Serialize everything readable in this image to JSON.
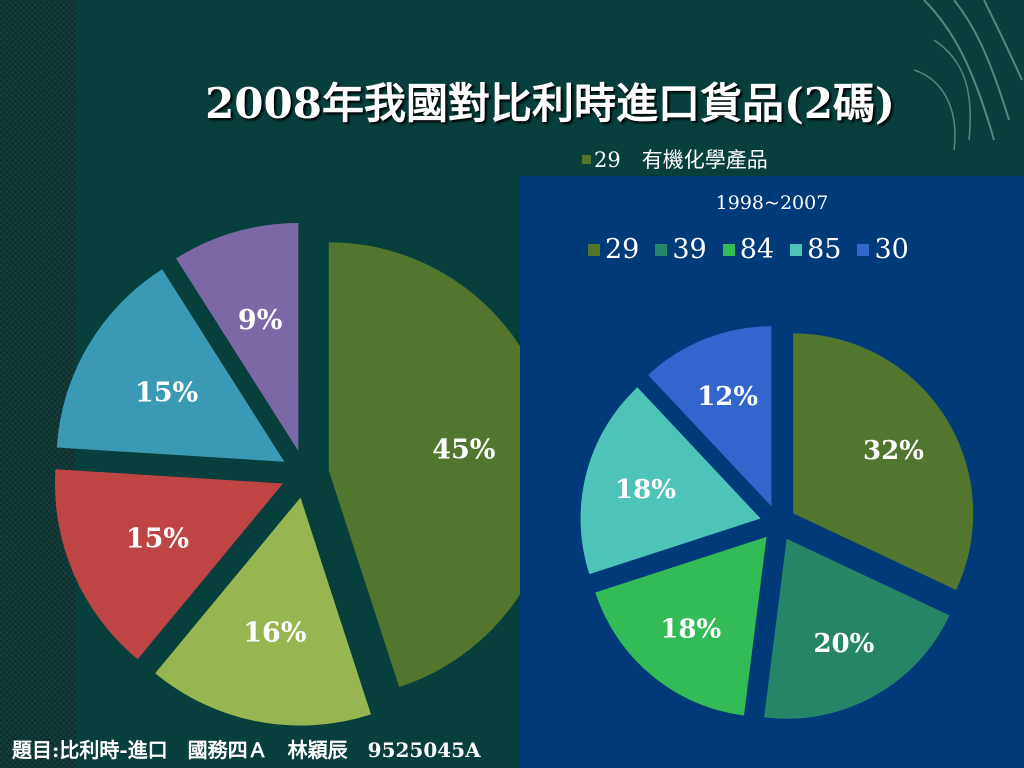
{
  "title": "2008年我國對比利時進口貨品(2碼)",
  "footer": "題目:比利時-進口　國務四Ａ　林穎辰　9525045A",
  "chart_data": [
    {
      "type": "pie",
      "title": "",
      "legend": [],
      "slices": [
        {
          "label": "45%",
          "value": 45,
          "color": "#53762e"
        },
        {
          "label": "16%",
          "value": 16,
          "color": "#97b652"
        },
        {
          "label": "15%",
          "value": 15,
          "color": "#bf4545"
        },
        {
          "label": "15%",
          "value": 15,
          "color": "#3a99b4"
        },
        {
          "label": "9%",
          "value": 9,
          "color": "#7c68a7"
        }
      ]
    },
    {
      "type": "pie",
      "title": "29　有機化學產品",
      "subtitle": "1998~2007",
      "legend": [
        {
          "name": "29",
          "color": "#53762e"
        },
        {
          "name": "39",
          "color": "#268566"
        },
        {
          "name": "84",
          "color": "#33bb55"
        },
        {
          "name": "85",
          "color": "#4ec4b8"
        },
        {
          "name": "30",
          "color": "#3366cc"
        }
      ],
      "slices": [
        {
          "label": "32%",
          "value": 32,
          "color": "#53762e"
        },
        {
          "label": "20%",
          "value": 20,
          "color": "#268566"
        },
        {
          "label": "18%",
          "value": 18,
          "color": "#33bb55"
        },
        {
          "label": "18%",
          "value": 18,
          "color": "#4ec4b8"
        },
        {
          "label": "12%",
          "value": 12,
          "color": "#3366cc"
        }
      ]
    }
  ]
}
